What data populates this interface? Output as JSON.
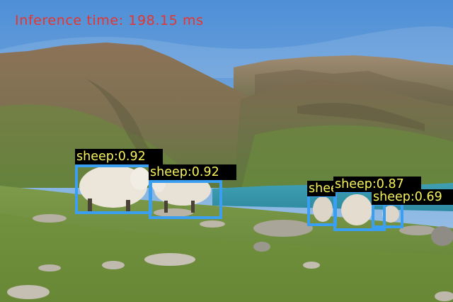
{
  "overlay": {
    "inference_text": "Inference time: 198.15 ms",
    "text_color": "#e8342e"
  },
  "detections": [
    {
      "label": "sheep:0.92"
    },
    {
      "label": "sheep:0.92"
    },
    {
      "label": "sheep"
    },
    {
      "label": "sheep:0.87"
    },
    {
      "label": "sheep:0.69"
    }
  ],
  "colors": {
    "box": "#3a9ff0",
    "label_bg": "#000000",
    "label_text": "#f6f25a"
  }
}
